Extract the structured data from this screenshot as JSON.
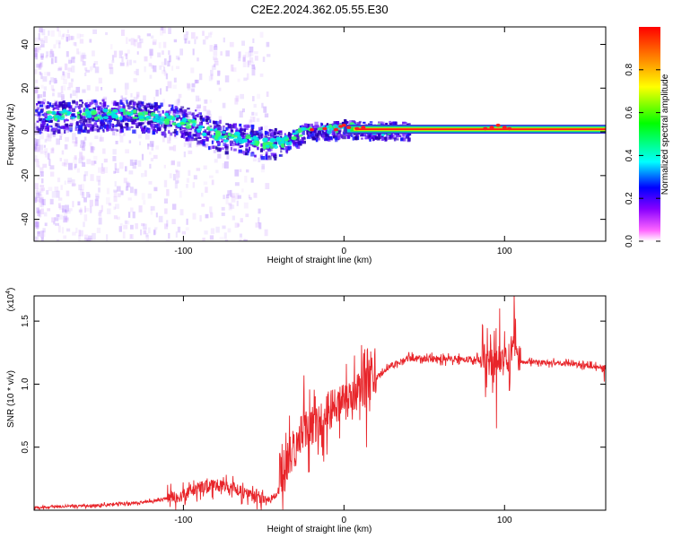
{
  "figure_title": "C2E2.2024.362.05.55.E30",
  "chart_data": [
    {
      "type": "heatmap",
      "xlabel": "Height of straight line (km)",
      "ylabel": "Frequency (Hz)",
      "xlim": [
        -193,
        163
      ],
      "ylim": [
        -50,
        48
      ],
      "x_ticks": [
        -100,
        0,
        100
      ],
      "y_ticks": [
        -40,
        -20,
        0,
        20,
        40
      ],
      "grid": false,
      "colorbar": {
        "label": "Normalized spectral amplitude",
        "range": [
          0,
          1
        ],
        "ticks": [
          0.0,
          0.2,
          0.4,
          0.6,
          0.8
        ],
        "colors": [
          "#ffffff",
          "#ff33ff",
          "#8800ff",
          "#0000ff",
          "#00ffff",
          "#00ff00",
          "#ffff00",
          "#ff8800",
          "#ff0000"
        ]
      },
      "ridge": {
        "x": [
          -193,
          -160,
          -130,
          -110,
          -95,
          -85,
          -75,
          -60,
          -50,
          -40,
          -35,
          -25,
          -15,
          -5,
          0,
          10,
          20,
          50,
          90,
          95,
          100,
          105,
          163
        ],
        "y": [
          7,
          8,
          8,
          6,
          4,
          0,
          -2,
          -3,
          -5,
          -5,
          -4,
          0,
          1,
          1,
          2,
          1,
          1,
          1,
          1,
          2,
          1,
          1,
          1
        ]
      },
      "ridge_colors": {
        "noisy_region": "#3300cc",
        "transition_region": "#00cccc",
        "stable_region": "#ff0000"
      }
    },
    {
      "type": "line",
      "xlabel": "Height of straight line (km)",
      "ylabel": "SNR (10 * v/v)",
      "y_scale_label": "(x10",
      "y_scale_exponent": "4",
      "xlim": [
        -193,
        163
      ],
      "ylim": [
        0.0,
        1.7
      ],
      "x_ticks": [
        -100,
        0,
        100
      ],
      "y_ticks": [
        0.5,
        1.0,
        1.5
      ],
      "y_tick_labels": [
        "0.5",
        "1.0",
        "1.5"
      ],
      "grid": false,
      "color": "#e8252a",
      "anchors": {
        "x": [
          -193,
          -150,
          -120,
          -100,
          -90,
          -80,
          -70,
          -55,
          -45,
          -38,
          -33,
          -28,
          -22,
          -15,
          -8,
          0,
          10,
          20,
          30,
          40,
          60,
          80,
          90,
          95,
          100,
          105,
          110,
          130,
          150,
          163
        ],
        "y": [
          0.02,
          0.04,
          0.07,
          0.12,
          0.18,
          0.2,
          0.18,
          0.1,
          0.08,
          0.2,
          0.45,
          0.6,
          0.65,
          0.7,
          0.8,
          0.85,
          0.95,
          1.05,
          1.15,
          1.2,
          1.2,
          1.2,
          1.18,
          1.2,
          1.15,
          1.3,
          1.18,
          1.17,
          1.15,
          1.13
        ]
      },
      "notable_points": {
        "x": [
          -40,
          -34,
          -30,
          -25,
          -22,
          -18,
          -14,
          -8,
          -4,
          14,
          95,
          97,
          100,
          103,
          106,
          162
        ],
        "y": [
          0.45,
          0.75,
          0.35,
          1.07,
          0.3,
          0.9,
          0.5,
          0.95,
          0.9,
          0.5,
          0.65,
          1.6,
          1.42,
          0.95,
          1.72,
          1.02
        ]
      }
    }
  ]
}
